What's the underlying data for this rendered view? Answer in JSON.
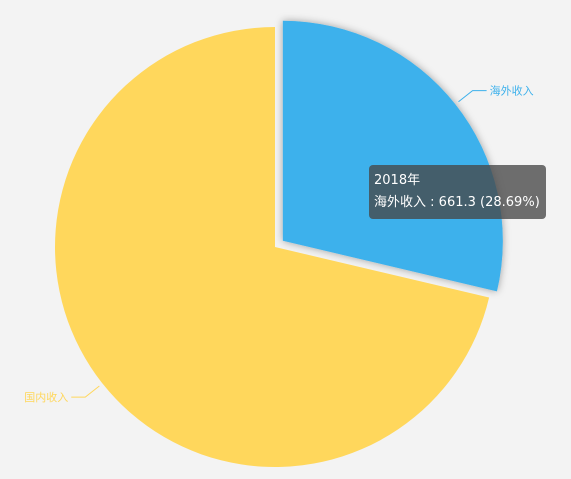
{
  "chart_data": {
    "type": "pie",
    "slices": [
      {
        "name": "海外收入",
        "value": 661.3,
        "percent": "28.69%",
        "color": "#3db1ec",
        "highlighted": true
      },
      {
        "name": "国内收入",
        "value": 1643.7,
        "percent": "71.31%",
        "color": "#ffd75c",
        "highlighted": false
      }
    ],
    "legend": "none",
    "start_angle_deg": 90,
    "direction": "clockwise"
  },
  "tooltip": {
    "title": "2018年",
    "series_name": "海外收入",
    "value": "661.3",
    "percent": "28.69%"
  },
  "background_color": "#f3f3f3"
}
